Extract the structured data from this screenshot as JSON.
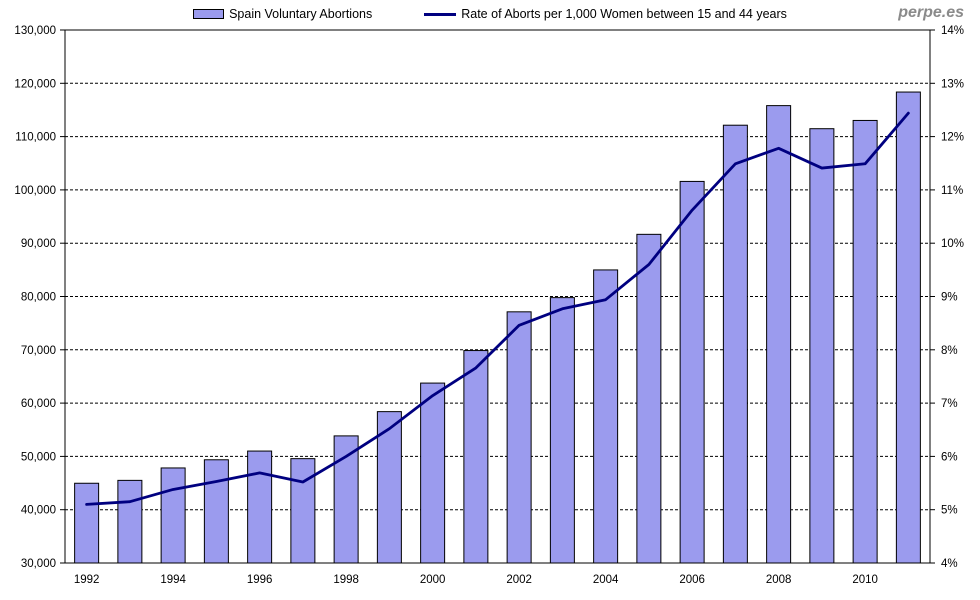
{
  "watermark": "perpe.es",
  "legend": {
    "bars_label": "Spain Voluntary Abortions",
    "line_label": "Rate of Aborts per 1,000 Women between 15 and 44 years"
  },
  "colors": {
    "bar_fill": "#9B9BEE",
    "bar_border": "#000000",
    "line": "#000080",
    "grid": "#000000",
    "axis_text": "#000000",
    "watermark": "#8a8a8a"
  },
  "chart_data": {
    "type": "bar",
    "subtype": "bar+line dual axis",
    "categories": [
      "1992",
      "1993",
      "1994",
      "1995",
      "1996",
      "1997",
      "1998",
      "1999",
      "2000",
      "2001",
      "2002",
      "2003",
      "2004",
      "2005",
      "2006",
      "2007",
      "2008",
      "2009",
      "2010",
      "2011"
    ],
    "series": [
      {
        "name": "Spain Voluntary Abortions",
        "type": "bar",
        "axis": "left",
        "values": [
          44962,
          45503,
          47832,
          49367,
          51002,
          49578,
          53847,
          58399,
          63756,
          69857,
          77125,
          79788,
          84985,
          91664,
          101592,
          112138,
          115812,
          111482,
          113031,
          118359
        ]
      },
      {
        "name": "Rate of Aborts per 1,000 Women between 15 and 44 years",
        "type": "line",
        "axis": "right",
        "values": [
          5.1,
          5.15,
          5.38,
          5.53,
          5.69,
          5.52,
          6.0,
          6.52,
          7.14,
          7.66,
          8.46,
          8.77,
          8.94,
          9.6,
          10.62,
          11.49,
          11.78,
          11.41,
          11.49,
          12.44
        ]
      }
    ],
    "y_left": {
      "min": 30000,
      "max": 130000,
      "step": 10000,
      "tick_labels": [
        "130,000",
        "120,000",
        "110,000",
        "100,000",
        "90,000",
        "80,000",
        "70,000",
        "60,000",
        "50,000",
        "40,000",
        "30,000"
      ]
    },
    "y_right": {
      "min": 4,
      "max": 14,
      "step": 1,
      "tick_labels": [
        "14%",
        "13%",
        "12%",
        "11%",
        "10%",
        "9%",
        "8%",
        "7%",
        "6%",
        "5%",
        "4%"
      ]
    },
    "x_tick_labels": [
      "1992",
      "1994",
      "1996",
      "1998",
      "2000",
      "2002",
      "2004",
      "2006",
      "2008",
      "2010"
    ],
    "x_tick_every": 2,
    "grid": "horizontal-dashed",
    "legend_position": "top-center",
    "title": ""
  }
}
